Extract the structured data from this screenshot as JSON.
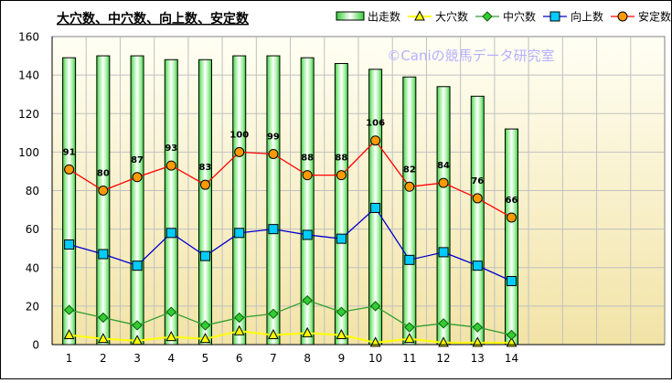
{
  "chart_data": {
    "type": "bar",
    "title": "大穴数、中穴数、向上数、安定数",
    "watermark": "©Caniの競馬データ研究室",
    "categories": [
      "1",
      "2",
      "3",
      "4",
      "5",
      "6",
      "7",
      "8",
      "9",
      "10",
      "11",
      "12",
      "13",
      "14"
    ],
    "ylim": [
      0,
      160
    ],
    "yticks": [
      "0",
      "20",
      "40",
      "60",
      "80",
      "100",
      "120",
      "140",
      "160"
    ],
    "grid": true,
    "legend_position": "top-right",
    "series": [
      {
        "name": "出走数",
        "kind": "bar",
        "color": "#33cc33",
        "values": [
          149,
          150,
          150,
          148,
          148,
          150,
          150,
          149,
          146,
          143,
          139,
          134,
          129,
          112
        ]
      },
      {
        "name": "大穴数",
        "kind": "line",
        "marker": "triangle",
        "color": "#ffff00",
        "values": [
          5,
          3,
          2,
          4,
          3,
          7,
          5,
          6,
          5,
          1,
          3,
          1,
          1,
          1
        ]
      },
      {
        "name": "中穴数",
        "kind": "line",
        "marker": "diamond",
        "color": "#2e9e2e",
        "values": [
          18,
          14,
          10,
          17,
          10,
          14,
          16,
          23,
          17,
          20,
          9,
          11,
          9,
          5
        ]
      },
      {
        "name": "向上数",
        "kind": "line",
        "marker": "square",
        "color": "#0000cc",
        "values": [
          52,
          47,
          41,
          58,
          46,
          58,
          60,
          57,
          55,
          71,
          44,
          48,
          41,
          33
        ]
      },
      {
        "name": "安定数",
        "kind": "line",
        "marker": "circle",
        "color": "#ff0000",
        "values": [
          91,
          80,
          87,
          93,
          83,
          100,
          99,
          88,
          88,
          106,
          82,
          84,
          76,
          66
        ],
        "data_labels": [
          "91",
          "80",
          "87",
          "93",
          "83",
          "100",
          "99",
          "88",
          "88",
          "106",
          "82",
          "84",
          "76",
          "66"
        ]
      }
    ]
  }
}
